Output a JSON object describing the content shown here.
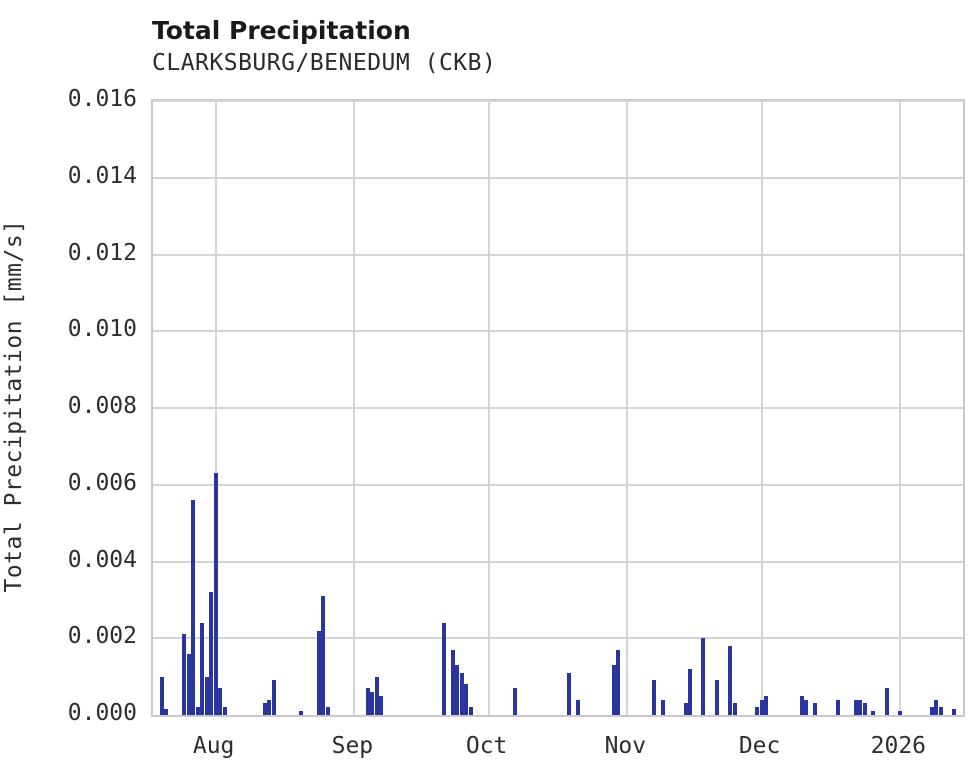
{
  "header": {
    "title": "Total Precipitation",
    "subtitle": "CLARKSBURG/BENEDUM (CKB)"
  },
  "chart_data": {
    "type": "bar",
    "title": "Total Precipitation",
    "subtitle": "CLARKSBURG/BENEDUM (CKB)",
    "xlabel": "",
    "ylabel": "Total Precipitation [mm/s]",
    "ylim": [
      0,
      0.016
    ],
    "ytick_labels": [
      "0.000",
      "0.002",
      "0.004",
      "0.006",
      "0.008",
      "0.010",
      "0.012",
      "0.014",
      "0.016"
    ],
    "ytick_values": [
      0,
      0.002,
      0.004,
      0.006,
      0.008,
      0.01,
      0.012,
      0.014,
      0.016
    ],
    "xtick_labels": [
      "Aug",
      "Sep",
      "Oct",
      "Nov",
      "Dec",
      "2026"
    ],
    "xtick_dates": [
      "2025-08-01",
      "2025-09-01",
      "2025-10-01",
      "2025-11-01",
      "2025-12-01",
      "2026-01-01"
    ],
    "x_range": [
      "2025-07-18",
      "2026-01-15"
    ],
    "grid": true,
    "legend": "none",
    "bar_color": "#2a35a0",
    "series": [
      {
        "name": "Total Precipitation [mm/s]",
        "points": [
          {
            "date": "2025-07-20",
            "value": 0.001
          },
          {
            "date": "2025-07-21",
            "value": 0.00015
          },
          {
            "date": "2025-07-25",
            "value": 0.0021
          },
          {
            "date": "2025-07-26",
            "value": 0.0016
          },
          {
            "date": "2025-07-27",
            "value": 0.0056
          },
          {
            "date": "2025-07-28",
            "value": 0.0002
          },
          {
            "date": "2025-07-29",
            "value": 0.0024
          },
          {
            "date": "2025-07-30",
            "value": 0.001
          },
          {
            "date": "2025-07-31",
            "value": 0.0032
          },
          {
            "date": "2025-08-01",
            "value": 0.0063
          },
          {
            "date": "2025-08-02",
            "value": 0.0007
          },
          {
            "date": "2025-08-03",
            "value": 0.0002
          },
          {
            "date": "2025-08-12",
            "value": 0.0003
          },
          {
            "date": "2025-08-13",
            "value": 0.0004
          },
          {
            "date": "2025-08-14",
            "value": 0.0009
          },
          {
            "date": "2025-08-20",
            "value": 0.0001
          },
          {
            "date": "2025-08-24",
            "value": 0.0022
          },
          {
            "date": "2025-08-25",
            "value": 0.0031
          },
          {
            "date": "2025-08-26",
            "value": 0.0002
          },
          {
            "date": "2025-09-04",
            "value": 0.0007
          },
          {
            "date": "2025-09-05",
            "value": 0.0006
          },
          {
            "date": "2025-09-06",
            "value": 0.001
          },
          {
            "date": "2025-09-07",
            "value": 0.0005
          },
          {
            "date": "2025-09-21",
            "value": 0.0024
          },
          {
            "date": "2025-09-23",
            "value": 0.0017
          },
          {
            "date": "2025-09-24",
            "value": 0.0013
          },
          {
            "date": "2025-09-25",
            "value": 0.0011
          },
          {
            "date": "2025-09-26",
            "value": 0.0008
          },
          {
            "date": "2025-09-27",
            "value": 0.0002
          },
          {
            "date": "2025-10-07",
            "value": 0.0007
          },
          {
            "date": "2025-10-19",
            "value": 0.0011
          },
          {
            "date": "2025-10-21",
            "value": 0.0004
          },
          {
            "date": "2025-10-29",
            "value": 0.0013
          },
          {
            "date": "2025-10-30",
            "value": 0.0017
          },
          {
            "date": "2025-11-07",
            "value": 0.0009
          },
          {
            "date": "2025-11-09",
            "value": 0.0004
          },
          {
            "date": "2025-11-14",
            "value": 0.0003
          },
          {
            "date": "2025-11-15",
            "value": 0.0012
          },
          {
            "date": "2025-11-18",
            "value": 0.002
          },
          {
            "date": "2025-11-21",
            "value": 0.0009
          },
          {
            "date": "2025-11-24",
            "value": 0.0018
          },
          {
            "date": "2025-11-25",
            "value": 0.0003
          },
          {
            "date": "2025-11-30",
            "value": 0.0002
          },
          {
            "date": "2025-12-01",
            "value": 0.0004
          },
          {
            "date": "2025-12-02",
            "value": 0.0005
          },
          {
            "date": "2025-12-10",
            "value": 0.0005
          },
          {
            "date": "2025-12-11",
            "value": 0.0004
          },
          {
            "date": "2025-12-13",
            "value": 0.0003
          },
          {
            "date": "2025-12-18",
            "value": 0.0004
          },
          {
            "date": "2025-12-22",
            "value": 0.0004
          },
          {
            "date": "2025-12-23",
            "value": 0.0004
          },
          {
            "date": "2025-12-24",
            "value": 0.0003
          },
          {
            "date": "2025-12-26",
            "value": 0.0001
          },
          {
            "date": "2025-12-29",
            "value": 0.0007
          },
          {
            "date": "2026-01-01",
            "value": 0.0001
          },
          {
            "date": "2026-01-08",
            "value": 0.0002
          },
          {
            "date": "2026-01-09",
            "value": 0.0004
          },
          {
            "date": "2026-01-10",
            "value": 0.0002
          },
          {
            "date": "2026-01-13",
            "value": 0.00015
          }
        ]
      }
    ]
  },
  "colors": {
    "bar": "#2a35a0",
    "grid": "#d4d4d4",
    "plot_border": "#c9c9c9",
    "title_text": "#1a1a1a",
    "tick_text": "#2e2e2e",
    "background": "#ffffff"
  }
}
